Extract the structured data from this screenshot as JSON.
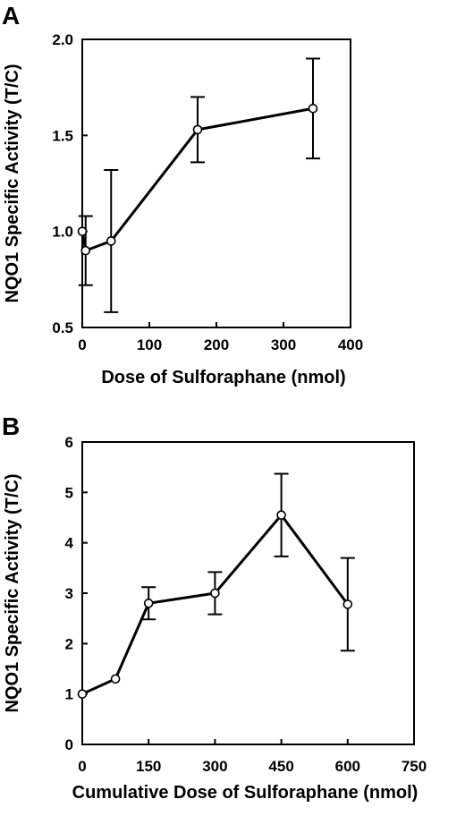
{
  "chart_data": [
    {
      "panel": "A",
      "type": "line",
      "xlabel": "Dose of Sulforaphane (nmol)",
      "ylabel": "NQO1 Specific Activity (T/C)",
      "xlim": [
        0,
        400
      ],
      "ylim": [
        0.5,
        2.0
      ],
      "xticks": [
        0,
        100,
        200,
        300,
        400
      ],
      "xtick_labels": [
        "0",
        "100",
        "200",
        "300",
        "400"
      ],
      "yticks": [
        0.5,
        1.0,
        1.5,
        2.0
      ],
      "ytick_labels": [
        "0.5",
        "1.0",
        "1.5",
        "2.0"
      ],
      "grid": false,
      "x": [
        0,
        5,
        43,
        172,
        344
      ],
      "values": [
        1.0,
        0.9,
        0.95,
        1.53,
        1.64
      ],
      "error": [
        0.0,
        0.18,
        0.37,
        0.17,
        0.26
      ]
    },
    {
      "panel": "B",
      "type": "line",
      "xlabel": "Cumulative Dose of Sulforaphane (nmol)",
      "ylabel": "NQO1 Specific Activity (T/C)",
      "xlim": [
        0,
        750
      ],
      "ylim": [
        0,
        6
      ],
      "xticks": [
        0,
        150,
        300,
        450,
        600,
        750
      ],
      "xtick_labels": [
        "0",
        "150",
        "300",
        "450",
        "600",
        "750"
      ],
      "yticks": [
        0,
        1,
        2,
        3,
        4,
        5,
        6
      ],
      "ytick_labels": [
        "0",
        "1",
        "2",
        "3",
        "4",
        "5",
        "6"
      ],
      "grid": false,
      "x": [
        0,
        75,
        150,
        300,
        450,
        600
      ],
      "values": [
        1.0,
        1.3,
        2.8,
        3.0,
        4.55,
        2.78
      ],
      "error": [
        0.0,
        0.0,
        0.32,
        0.42,
        0.82,
        0.92
      ]
    }
  ]
}
